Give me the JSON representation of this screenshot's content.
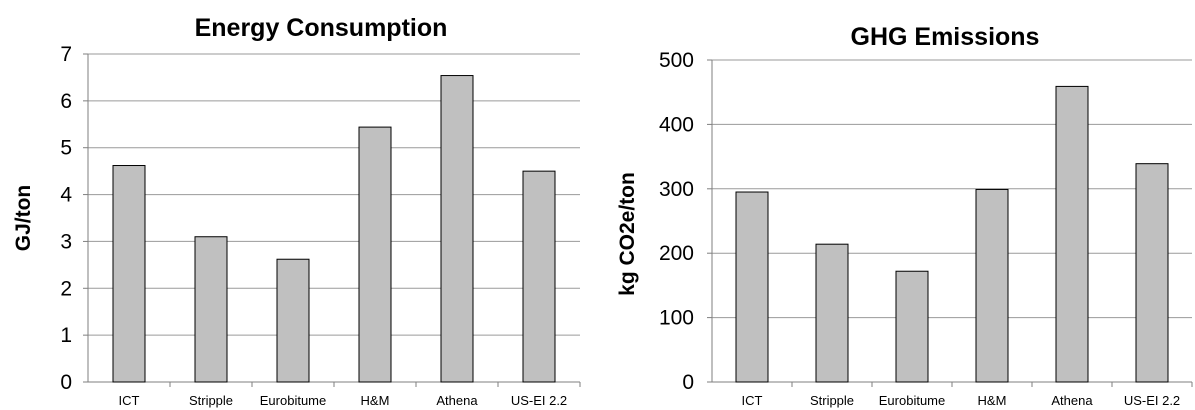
{
  "chart_data": [
    {
      "type": "bar",
      "title": "Energy Consumption",
      "xlabel": "",
      "ylabel": "GJ/ton",
      "categories": [
        "ICT",
        "Stripple",
        "Eurobitume",
        "H&M",
        "Athena",
        "US-EI 2.2"
      ],
      "values": [
        4.62,
        3.1,
        2.62,
        5.44,
        6.54,
        4.5
      ],
      "ylim": [
        0,
        7
      ],
      "yticks": [
        "0",
        "1",
        "2",
        "3",
        "4",
        "5",
        "6",
        "7"
      ],
      "grid": true,
      "legend": "none",
      "bar_color": "#c0c0c0"
    },
    {
      "type": "bar",
      "title": "GHG Emissions",
      "xlabel": "",
      "ylabel": "kg CO2e/ton",
      "categories": [
        "ICT",
        "Stripple",
        "Eurobitume",
        "H&M",
        "Athena",
        "US-EI 2.2"
      ],
      "values": [
        295,
        214,
        172,
        299,
        459,
        339
      ],
      "ylim": [
        0,
        500
      ],
      "yticks": [
        "0",
        "100",
        "200",
        "300",
        "400",
        "500"
      ],
      "grid": true,
      "legend": "none",
      "bar_color": "#c0c0c0"
    }
  ]
}
